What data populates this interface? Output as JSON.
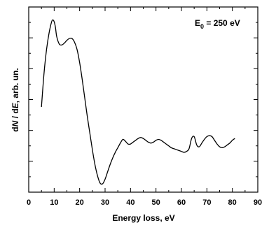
{
  "chart_data": {
    "type": "line",
    "xlabel": "Energy loss, eV",
    "ylabel": {
      "prefix": "d",
      "n": "N",
      "slash": " / d",
      "e": "E",
      "suffix": ", arb. un."
    },
    "annotation": {
      "base": "E",
      "sub": "0",
      "rest": " = 250 eV"
    },
    "xlim": [
      0,
      90
    ],
    "ylim": [
      0,
      1
    ],
    "y_tick_labels_shown": false,
    "xticks": [
      0,
      10,
      20,
      30,
      40,
      50,
      60,
      70,
      80,
      90
    ],
    "xtick_labels": [
      "0",
      "10",
      "20",
      "30",
      "40",
      "50",
      "60",
      "70",
      "80",
      "90"
    ],
    "series": [
      {
        "x": [
          5,
          6,
          7,
          8,
          9,
          9.5,
          10,
          10.5,
          11,
          12,
          13,
          14,
          15,
          16,
          17,
          18,
          19,
          20,
          21,
          22,
          23,
          24,
          25,
          26,
          27,
          28,
          29,
          30,
          31,
          32,
          33,
          34,
          35,
          36,
          37,
          38,
          39,
          40,
          41,
          42,
          43,
          44,
          45,
          46,
          47,
          48,
          49,
          50,
          51,
          52,
          53,
          54,
          55,
          56,
          57,
          58,
          59,
          60,
          61,
          62,
          63,
          64,
          65,
          66,
          67,
          68,
          69,
          70,
          71,
          72,
          73,
          74,
          75,
          76,
          77,
          78,
          79,
          80,
          81
        ],
        "y": [
          0.46,
          0.64,
          0.77,
          0.86,
          0.92,
          0.93,
          0.92,
          0.89,
          0.84,
          0.8,
          0.795,
          0.805,
          0.82,
          0.83,
          0.83,
          0.81,
          0.77,
          0.7,
          0.61,
          0.51,
          0.41,
          0.32,
          0.23,
          0.15,
          0.09,
          0.05,
          0.045,
          0.07,
          0.11,
          0.15,
          0.185,
          0.215,
          0.24,
          0.265,
          0.285,
          0.275,
          0.26,
          0.26,
          0.27,
          0.28,
          0.29,
          0.295,
          0.29,
          0.28,
          0.27,
          0.265,
          0.27,
          0.28,
          0.285,
          0.28,
          0.27,
          0.26,
          0.25,
          0.24,
          0.235,
          0.23,
          0.225,
          0.22,
          0.215,
          0.22,
          0.235,
          0.29,
          0.3,
          0.255,
          0.245,
          0.265,
          0.285,
          0.3,
          0.305,
          0.3,
          0.28,
          0.26,
          0.245,
          0.24,
          0.245,
          0.255,
          0.265,
          0.28,
          0.29
        ]
      }
    ]
  }
}
